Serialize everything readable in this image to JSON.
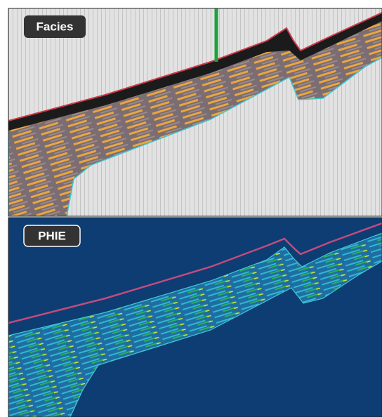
{
  "panels": [
    {
      "label": "Facies"
    },
    {
      "label": "PHIE"
    }
  ]
}
